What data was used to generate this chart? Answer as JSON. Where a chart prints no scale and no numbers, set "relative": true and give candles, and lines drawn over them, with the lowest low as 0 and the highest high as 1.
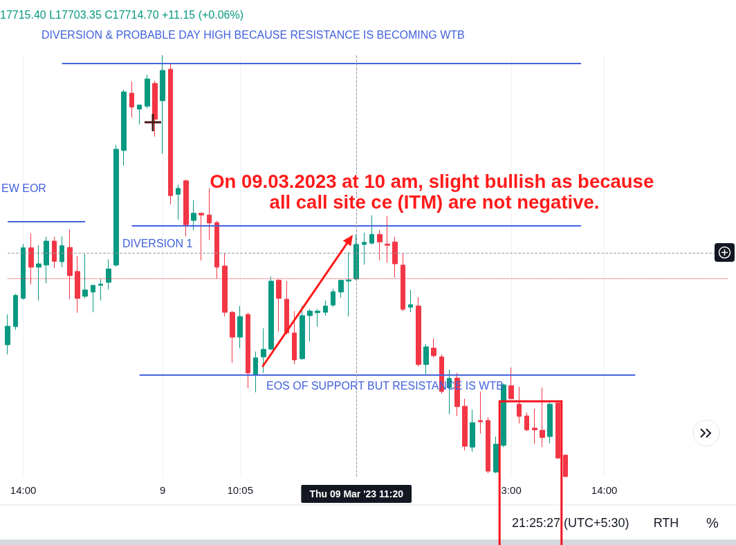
{
  "chart_data": {
    "type": "candlestick",
    "relative": true,
    "grid": "x",
    "categories": [
      null,
      null,
      "14:00",
      null,
      null,
      null,
      null,
      null,
      null,
      null,
      null,
      null,
      null,
      null,
      null,
      null,
      null,
      null,
      null,
      null,
      "9",
      null,
      null,
      null,
      null,
      null,
      null,
      null,
      null,
      null,
      "10:05",
      null,
      null,
      null,
      null,
      null,
      null,
      null,
      null,
      null,
      null,
      null,
      null,
      null,
      null,
      "Thu 09 Mar '23 11:20",
      null,
      null,
      null,
      null,
      null,
      null,
      null,
      null,
      null,
      null,
      null,
      null,
      null,
      null,
      null,
      null,
      null,
      null,
      null,
      "3:00",
      null,
      null,
      null,
      null,
      null,
      null,
      null,
      null,
      null,
      null,
      null,
      "14:00",
      null,
      null,
      null,
      null,
      null,
      null,
      null,
      null,
      null,
      null,
      null,
      null,
      null,
      null,
      null,
      null
    ],
    "ohlc": [
      [
        0.313,
        0.385,
        0.29,
        0.357
      ],
      [
        0.356,
        0.434,
        0.348,
        0.43
      ],
      [
        0.423,
        0.552,
        0.42,
        0.543
      ],
      [
        0.543,
        0.577,
        0.456,
        0.497
      ],
      [
        0.497,
        0.549,
        0.418,
        0.505
      ],
      [
        0.502,
        0.569,
        0.459,
        0.559
      ],
      [
        0.559,
        0.569,
        0.495,
        0.511
      ],
      [
        0.51,
        0.57,
        0.497,
        0.548
      ],
      [
        0.544,
        0.587,
        0.421,
        0.477
      ],
      [
        0.487,
        0.523,
        0.389,
        0.423
      ],
      [
        0.428,
        0.528,
        0.423,
        0.443
      ],
      [
        0.438,
        0.454,
        0.39,
        0.454
      ],
      [
        0.454,
        0.47,
        0.418,
        0.457
      ],
      [
        0.461,
        0.516,
        0.444,
        0.493
      ],
      [
        0.502,
        0.787,
        0.498,
        0.777
      ],
      [
        0.774,
        0.918,
        0.738,
        0.913
      ],
      [
        0.91,
        0.938,
        0.852,
        0.877
      ],
      [
        0.872,
        0.882,
        0.836,
        0.882
      ],
      [
        0.879,
        0.954,
        0.874,
        0.944
      ],
      [
        0.933,
        0.939,
        0.807,
        0.848
      ],
      [
        0.892,
        1.0,
        0.766,
        0.964
      ],
      [
        0.967,
        0.98,
        0.646,
        0.667
      ],
      [
        0.67,
        0.693,
        0.61,
        0.684
      ],
      [
        0.702,
        0.705,
        0.57,
        0.598
      ],
      [
        0.608,
        0.656,
        0.585,
        0.625
      ],
      [
        0.625,
        0.626,
        0.513,
        0.621
      ],
      [
        0.621,
        0.684,
        0.562,
        0.602
      ],
      [
        0.603,
        0.607,
        0.469,
        0.497
      ],
      [
        0.5,
        0.53,
        0.38,
        0.39
      ],
      [
        0.39,
        0.393,
        0.27,
        0.331
      ],
      [
        0.331,
        0.405,
        0.305,
        0.38
      ],
      [
        0.385,
        0.389,
        0.21,
        0.246
      ],
      [
        0.241,
        0.297,
        0.2,
        0.282
      ],
      [
        0.284,
        0.352,
        0.246,
        0.302
      ],
      [
        0.303,
        0.475,
        0.3,
        0.464
      ],
      [
        0.466,
        0.469,
        0.344,
        0.423
      ],
      [
        0.421,
        0.464,
        0.338,
        0.341
      ],
      [
        0.341,
        0.393,
        0.267,
        0.277
      ],
      [
        0.28,
        0.405,
        0.277,
        0.382
      ],
      [
        0.382,
        0.398,
        0.32,
        0.393
      ],
      [
        0.389,
        0.398,
        0.356,
        0.393
      ],
      [
        0.39,
        0.418,
        0.382,
        0.405
      ],
      [
        0.407,
        0.446,
        0.403,
        0.439
      ],
      [
        0.438,
        0.467,
        0.425,
        0.466
      ],
      [
        0.464,
        0.533,
        0.38,
        0.467
      ],
      [
        0.469,
        0.574,
        0.467,
        0.551
      ],
      [
        0.551,
        0.579,
        0.503,
        0.556
      ],
      [
        0.554,
        0.62,
        0.551,
        0.575
      ],
      [
        0.575,
        0.585,
        0.513,
        0.557
      ],
      [
        0.552,
        0.618,
        0.508,
        0.549
      ],
      [
        0.557,
        0.569,
        0.472,
        0.505
      ],
      [
        0.502,
        0.53,
        0.393,
        0.397
      ],
      [
        0.402,
        0.443,
        0.39,
        0.408
      ],
      [
        0.405,
        0.426,
        0.262,
        0.266
      ],
      [
        0.266,
        0.315,
        0.243,
        0.308
      ],
      [
        0.305,
        0.328,
        0.282,
        0.287
      ],
      [
        0.284,
        0.29,
        0.197,
        0.202
      ],
      [
        0.211,
        0.254,
        0.148,
        0.233
      ],
      [
        0.234,
        0.246,
        0.144,
        0.166
      ],
      [
        0.167,
        0.185,
        0.062,
        0.072
      ],
      [
        0.07,
        0.159,
        0.059,
        0.128
      ],
      [
        0.133,
        0.202,
        0.102,
        0.13
      ],
      [
        0.133,
        0.141,
        0.008,
        0.013
      ],
      [
        0.011,
        0.095,
        0.008,
        0.077
      ],
      [
        0.074,
        0.221,
        0.07,
        0.218
      ],
      [
        0.216,
        0.259,
        0.184,
        0.185
      ],
      [
        0.172,
        0.213,
        0.126,
        0.143
      ],
      [
        0.144,
        0.152,
        0.108,
        0.111
      ],
      [
        0.115,
        0.161,
        0.077,
        0.111
      ],
      [
        0.11,
        0.211,
        0.07,
        0.093
      ],
      [
        0.095,
        0.175,
        0.079,
        0.172
      ],
      [
        0.175,
        0.175,
        0.044,
        0.044
      ],
      [
        0.051,
        0.051,
        0.0,
        0.0
      ],
      null,
      null,
      null,
      null,
      null,
      null,
      null,
      null,
      null,
      null,
      null,
      null,
      null,
      null,
      null,
      null,
      null,
      null,
      null,
      null,
      null
    ],
    "colors": [
      "#089981",
      "#089981",
      "#089981",
      "#f23645",
      "#089981",
      "#089981",
      "#f23645",
      "#089981",
      "#f23645",
      "#f23645",
      "#089981",
      "#089981",
      "#089981",
      "#089981",
      "#089981",
      "#089981",
      "#f23645",
      "#089981",
      "#089981",
      "#f23645",
      "#089981",
      "#f23645",
      "#089981",
      "#f23645",
      "#089981",
      "#f23645",
      "#f23645",
      "#f23645",
      "#f23645",
      "#f23645",
      "#089981",
      "#f23645",
      "#089981",
      "#089981",
      "#089981",
      "#f23645",
      "#f23645",
      "#f23645",
      "#089981",
      "#089981",
      "#089981",
      "#089981",
      "#089981",
      "#089981",
      "#089981",
      "#089981",
      "#089981",
      "#089981",
      "#f23645",
      "#f23645",
      "#f23645",
      "#f23645",
      "#089981",
      "#f23645",
      "#089981",
      "#f23645",
      "#f23645",
      "#089981",
      "#f23645",
      "#f23645",
      "#089981",
      "#f23645",
      "#f23645",
      "#089981",
      "#089981",
      "#f23645",
      "#f23645",
      "#f23645",
      "#f23645",
      "#f23645",
      "#089981",
      "#f23645",
      "#f23645",
      null,
      null,
      null,
      null,
      null,
      null,
      null,
      null,
      null,
      null,
      null,
      null,
      null,
      null,
      null,
      null,
      null,
      null,
      null,
      null,
      null
    ],
    "ref_lines": [
      {
        "axis": "y",
        "value": 0.98,
        "label": "DIVERSION & PROBABLE DAY HIGH BECAUSE RESISTANCE IS BECOMING WTB",
        "color": "#4262dd"
      },
      {
        "axis": "y",
        "value": 0.605,
        "label": "EW EOR",
        "color": "#4262dd"
      },
      {
        "axis": "y",
        "value": 0.595,
        "label": "DIVERSION 1",
        "color": "#4262dd"
      },
      {
        "axis": "y",
        "value": 0.241,
        "label": "EOS OF SUPPORT BUT RESISTANCE IS WTB",
        "color": "#4262dd"
      },
      {
        "axis": "y",
        "value": 0.533,
        "color": "#9598a1",
        "line_style": "dashed"
      },
      {
        "axis": "y",
        "value": 0.47,
        "color": "#f23645",
        "line_style": "dotted"
      },
      {
        "axis": "x",
        "value": "Thu 09 Mar '23 11:20",
        "color": "#9598a1",
        "line_style": "dashed"
      }
    ],
    "annotations": [
      "17715.40 L17703.35 C17714.70 +11.15 (+0.06%)",
      "On 09.03.2023 at 10 am, slight bullish as because all call site ce (ITM) are not negative.",
      "21:25:27 (UTC+5:30)",
      "RTH",
      "%"
    ]
  }
}
